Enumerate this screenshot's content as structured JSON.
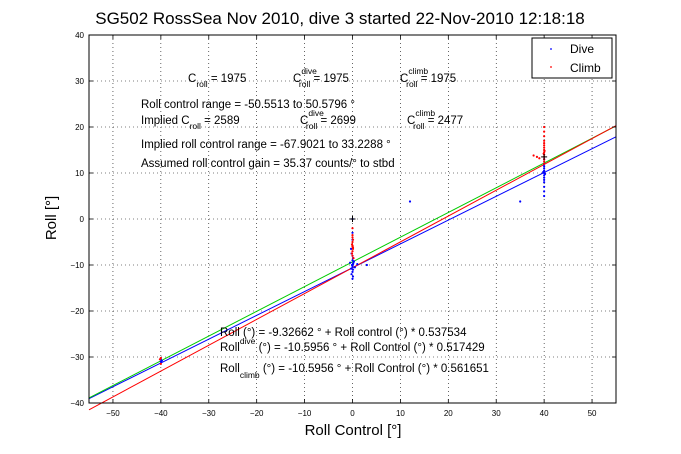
{
  "chart_data": {
    "type": "scatter",
    "title": "SG502 RossSea Nov 2010, dive 3 started 22-Nov-2010 12:18:18",
    "xlabel": "Roll Control [°]",
    "ylabel": "Roll [°]",
    "xlim": [
      -55,
      55
    ],
    "ylim": [
      -40,
      40
    ],
    "xticks": [
      -50,
      -40,
      -30,
      -20,
      -10,
      0,
      10,
      20,
      30,
      40,
      50
    ],
    "yticks": [
      -40,
      -30,
      -20,
      -10,
      0,
      10,
      20,
      30,
      40
    ],
    "grid": true,
    "legend": {
      "position": "top-right",
      "entries": [
        {
          "label": "Dive",
          "color": "#0000ff"
        },
        {
          "label": "Climb",
          "color": "#ff0000"
        }
      ]
    },
    "series": [
      {
        "name": "Dive",
        "color": "#0000ff",
        "points": [
          [
            -40,
            -30.5
          ],
          [
            -40,
            -31
          ],
          [
            -39.8,
            -30.8
          ],
          [
            -0.3,
            -6.5
          ],
          [
            -0.2,
            -7.5
          ],
          [
            0,
            -8
          ],
          [
            0.1,
            -8.5
          ],
          [
            0,
            -9
          ],
          [
            0.2,
            -9.5
          ],
          [
            -0.1,
            -10
          ],
          [
            0,
            -10.5
          ],
          [
            0.1,
            -11
          ],
          [
            0,
            -11.5
          ],
          [
            -0.2,
            -12
          ],
          [
            0.1,
            -12.5
          ],
          [
            0,
            -13
          ],
          [
            0.3,
            -9.2
          ],
          [
            -0.3,
            -10.8
          ],
          [
            0,
            -10.2
          ],
          [
            0.1,
            -9.8
          ],
          [
            0,
            -3
          ],
          [
            0,
            -4.5
          ],
          [
            0,
            0
          ],
          [
            0.5,
            -10.5
          ],
          [
            -0.5,
            -9.5
          ],
          [
            1,
            -9.8
          ],
          [
            3,
            -10
          ],
          [
            12,
            3.8
          ],
          [
            35,
            3.8
          ],
          [
            40,
            5
          ],
          [
            40,
            6
          ],
          [
            40,
            7
          ],
          [
            40,
            8
          ],
          [
            40,
            8.5
          ],
          [
            40,
            9
          ],
          [
            40,
            9.5
          ],
          [
            40,
            10
          ],
          [
            40,
            10.5
          ],
          [
            40,
            11
          ],
          [
            40,
            11.5
          ],
          [
            40,
            12
          ],
          [
            39.8,
            10.2
          ],
          [
            40.2,
            9.8
          ],
          [
            40,
            13
          ]
        ]
      },
      {
        "name": "Climb",
        "color": "#ff0000",
        "points": [
          [
            -40,
            -30.2
          ],
          [
            -40,
            -31.5
          ],
          [
            -40.2,
            -30.5
          ],
          [
            0,
            -2
          ],
          [
            0,
            -3.5
          ],
          [
            0,
            -4
          ],
          [
            0.1,
            -4.5
          ],
          [
            0,
            -5
          ],
          [
            -0.1,
            -5.5
          ],
          [
            0,
            -6
          ],
          [
            0.1,
            -6.5
          ],
          [
            0,
            -7
          ],
          [
            -0.1,
            -7.5
          ],
          [
            0,
            -8
          ],
          [
            0.2,
            -8.5
          ],
          [
            0,
            -5.8
          ],
          [
            0.1,
            -6.2
          ],
          [
            40,
            12
          ],
          [
            40,
            12.5
          ],
          [
            40,
            13
          ],
          [
            40,
            13.5
          ],
          [
            40,
            14
          ],
          [
            40,
            14.5
          ],
          [
            40,
            15
          ],
          [
            40,
            15.5
          ],
          [
            40,
            16
          ],
          [
            40,
            16.5
          ],
          [
            40,
            17
          ],
          [
            40,
            18
          ],
          [
            40,
            19
          ],
          [
            40,
            20
          ],
          [
            39.9,
            14.2
          ],
          [
            40.1,
            14.8
          ],
          [
            39,
            13.2
          ],
          [
            38.5,
            13.5
          ],
          [
            37.8,
            13.8
          ]
        ]
      },
      {
        "name": "",
        "color": "#000000",
        "points": [
          [
            0,
            0
          ],
          [
            40,
            13.5
          ]
        ]
      }
    ],
    "fit_lines": [
      {
        "color": "#0000ff",
        "intercept": -10.5956,
        "slope": 0.517429
      },
      {
        "color": "#00cc00",
        "intercept": -9.32662,
        "slope": 0.537534
      },
      {
        "color": "#ff0000",
        "intercept": -10.5956,
        "slope": 0.561651
      }
    ]
  },
  "annotations": {
    "c_roll": {
      "base": "C",
      "sub": "roll",
      "value": " = 1975"
    },
    "c_roll_dive": {
      "base": "C",
      "sup": "dive",
      "sub": "roll",
      "value": " = 1975"
    },
    "c_roll_climb": {
      "base": "C",
      "sup": "climb",
      "sub": "roll",
      "value": " = 1975"
    },
    "range_line": "Roll control range = -50.5513 to 50.5796 °",
    "implied_prefix": "Implied C",
    "implied_sub": "roll",
    "implied_value": " = 2589",
    "implied_dive": {
      "base": "C",
      "sup": "dive",
      "sub": "roll",
      "value": " = 2699"
    },
    "implied_climb": {
      "base": "C",
      "sup": "climb",
      "sub": "roll",
      "value": " = 2477"
    },
    "implied_range": "Implied roll control range = -67.9021 to 33.2288 °",
    "gain": "Assumed roll control gain = 35.37 counts/° to stbd",
    "eq1": "Roll (°) = -9.32662 ° + Roll control (°) * 0.537534",
    "eq2_a": "Roll",
    "eq2_sub": "dive",
    "eq2_b": " (°) = -10.5956 ° + Roll Control (°) * 0.517429",
    "eq3_a": "Roll",
    "eq3_sub": "climb",
    "eq3_b": " (°) = -10.5956 ° + Roll Control (°) * 0.561651"
  }
}
